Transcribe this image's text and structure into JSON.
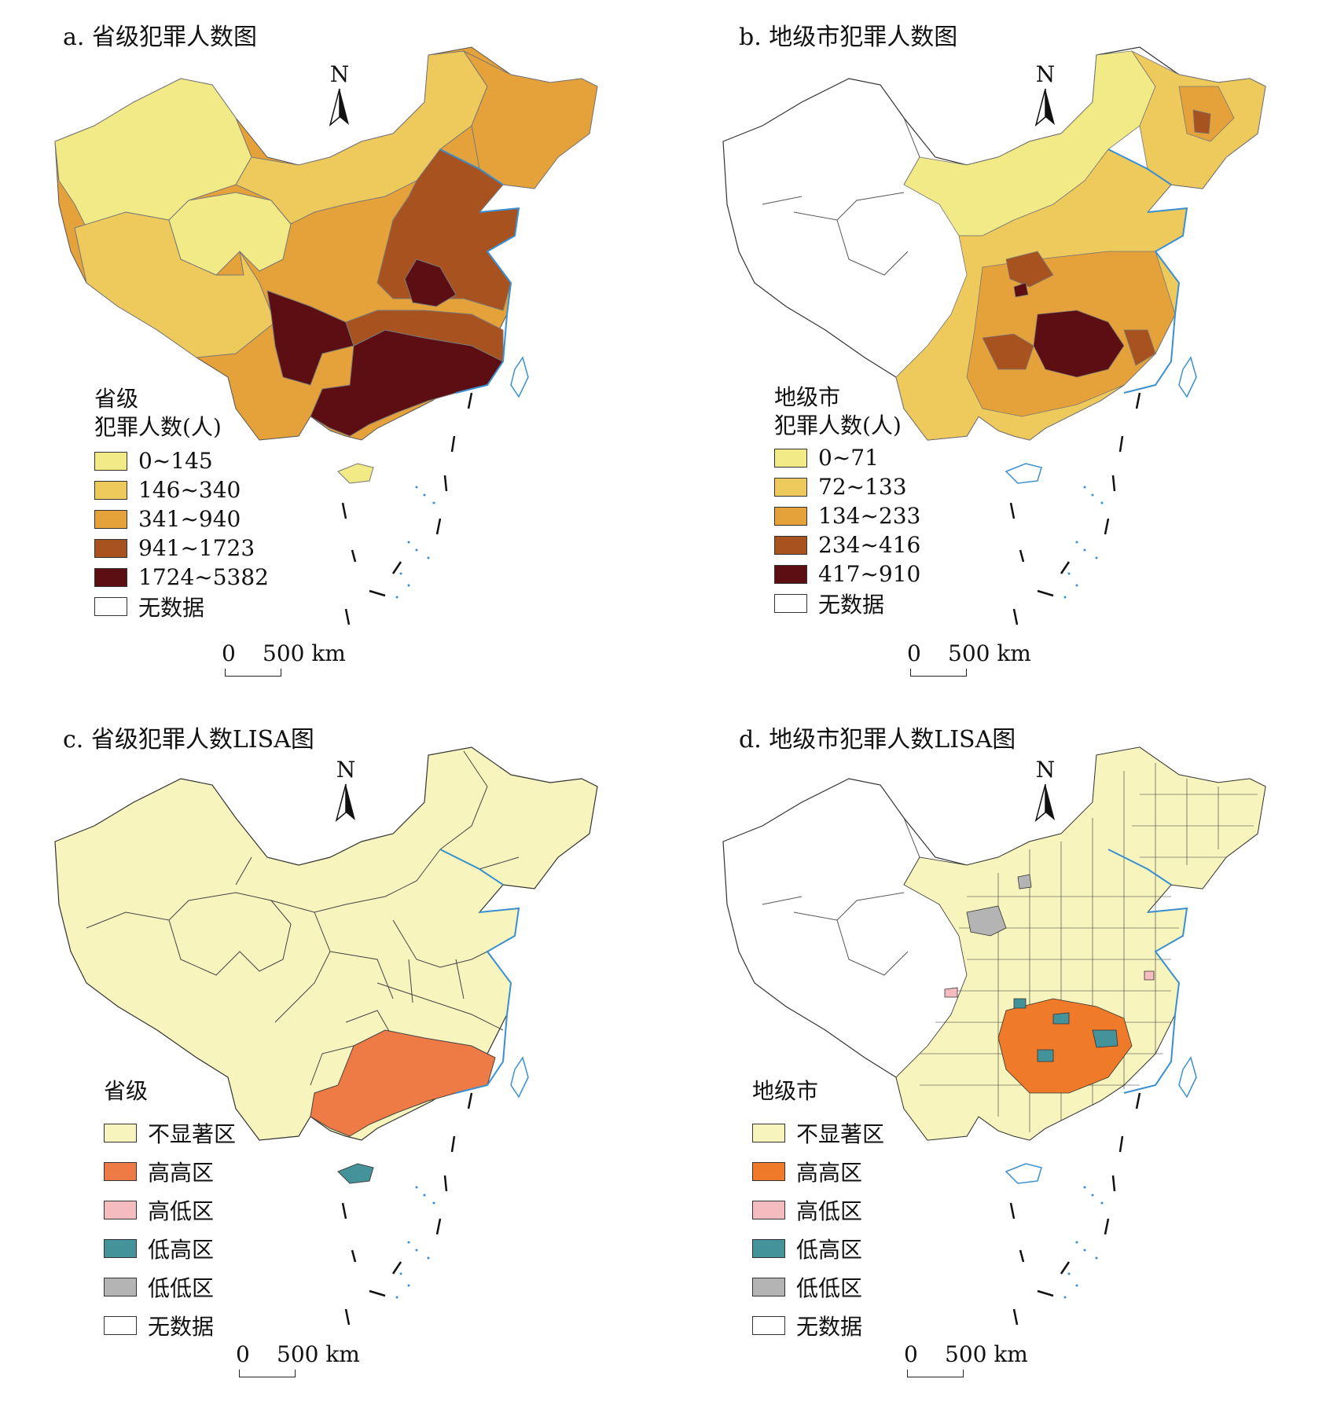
{
  "panels": [
    {
      "title": "a. 省级犯罪人数图",
      "legend_title_1": "省级",
      "legend_title_2": "犯罪人数(人)",
      "legend": [
        {
          "label": "0~145",
          "color": "#f1ea87"
        },
        {
          "label": "146~340",
          "color": "#eec95c"
        },
        {
          "label": "341~940",
          "color": "#e6a23a"
        },
        {
          "label": "941~1723",
          "color": "#a8531f"
        },
        {
          "label": "1724~5382",
          "color": "#5c0e12"
        },
        {
          "label": "无数据",
          "color": "#ffffff"
        }
      ]
    },
    {
      "title": "b. 地级市犯罪人数图",
      "legend_title_1": "地级市",
      "legend_title_2": "犯罪人数(人)",
      "legend": [
        {
          "label": "0~71",
          "color": "#f1ea87"
        },
        {
          "label": "72~133",
          "color": "#eec95c"
        },
        {
          "label": "134~233",
          "color": "#e6a23a"
        },
        {
          "label": "234~416",
          "color": "#a8531f"
        },
        {
          "label": "417~910",
          "color": "#5c0e12"
        },
        {
          "label": "无数据",
          "color": "#ffffff"
        }
      ]
    },
    {
      "title": "c. 省级犯罪人数LISA图",
      "legend_title_1": "省级",
      "legend_title_2": "",
      "legend": [
        {
          "label": "不显著区",
          "color": "#f7f4bd"
        },
        {
          "label": "高高区",
          "color": "#ee7a45"
        },
        {
          "label": "高低区",
          "color": "#f5bcbf"
        },
        {
          "label": "低高区",
          "color": "#45939a"
        },
        {
          "label": "低低区",
          "color": "#b4b4b4"
        },
        {
          "label": "无数据",
          "color": "#ffffff"
        }
      ]
    },
    {
      "title": "d. 地级市犯罪人数LISA图",
      "legend_title_1": "地级市",
      "legend_title_2": "",
      "legend": [
        {
          "label": "不显著区",
          "color": "#f7f4bd"
        },
        {
          "label": "高高区",
          "color": "#ee7a2a"
        },
        {
          "label": "高低区",
          "color": "#f5bcbf"
        },
        {
          "label": "低高区",
          "color": "#45939a"
        },
        {
          "label": "低低区",
          "color": "#b4b4b4"
        },
        {
          "label": "无数据",
          "color": "#ffffff"
        }
      ]
    }
  ],
  "north_label": "N",
  "scale_zero": "0",
  "scale_text": "500 km",
  "colors": {
    "coast": "#3a8fd0",
    "border": "#333333"
  }
}
